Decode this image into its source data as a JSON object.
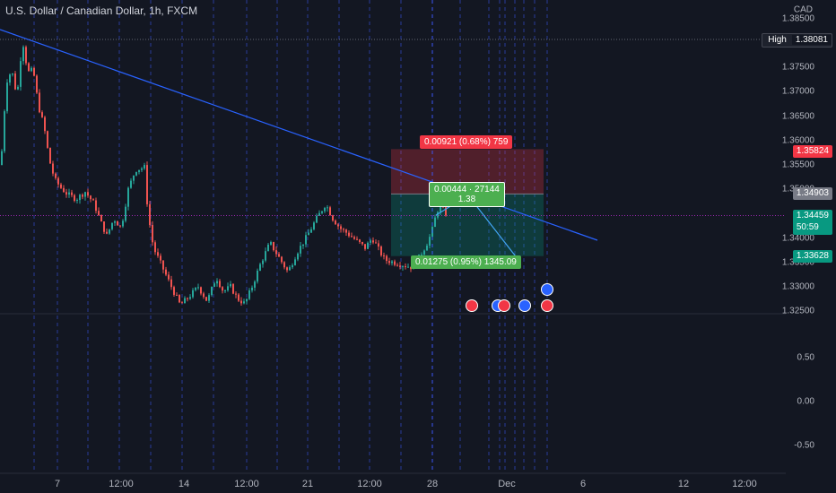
{
  "header": {
    "title": "U.S. Dollar / Canadian Dollar, 1h, FXCM"
  },
  "axis": {
    "currency": "CAD",
    "y_ticks": [
      "1.38500",
      "1.37500",
      "1.37000",
      "1.36500",
      "1.36000",
      "1.35500",
      "1.35000",
      "1.34000",
      "1.33500",
      "1.33000",
      "1.32500",
      "0.50",
      "0.00",
      "-0.50"
    ],
    "x_ticks": [
      "7",
      "12:00",
      "14",
      "12:00",
      "21",
      "12:00",
      "28",
      "Dec",
      "6",
      "12",
      "12:00"
    ]
  },
  "price_tags": {
    "high_label": "High",
    "high_value": "1.38081",
    "stop": "1.35824",
    "entry": "1.34903",
    "current": "1.34459",
    "countdown": "50:59",
    "target": "1.33628"
  },
  "position_tool": {
    "risk_label": "0.00921 (0.68%) 759",
    "reward_label": "0.01275 (0.95%) 1345.09",
    "mid_label_line1": "0.00444 · 27144",
    "mid_label_line2": "1.38"
  },
  "colors": {
    "background": "#131722",
    "up": "#26a69a",
    "down": "#ef5350",
    "trendline": "#2962ff",
    "grid_dash": "#3d5afe"
  },
  "chart_data": {
    "type": "candlestick",
    "symbol": "U.S. Dollar / Canadian Dollar",
    "timeframe": "1h",
    "ylim": [
      1.3225,
      1.3865
    ],
    "key_levels": {
      "high": 1.38081,
      "stop": 1.35824,
      "entry": 1.34903,
      "current": 1.34459,
      "target": 1.33628
    },
    "path_points": [
      [
        0,
        1.355
      ],
      [
        6,
        1.372
      ],
      [
        12,
        1.3745
      ],
      [
        18,
        1.369
      ],
      [
        24,
        1.3808
      ],
      [
        30,
        1.374
      ],
      [
        36,
        1.3745
      ],
      [
        42,
        1.367
      ],
      [
        48,
        1.363
      ],
      [
        54,
        1.356
      ],
      [
        60,
        1.352
      ],
      [
        66,
        1.3505
      ],
      [
        74,
        1.349
      ],
      [
        84,
        1.348
      ],
      [
        94,
        1.3495
      ],
      [
        104,
        1.347
      ],
      [
        112,
        1.343
      ],
      [
        118,
        1.3405
      ],
      [
        126,
        1.344
      ],
      [
        134,
        1.342
      ],
      [
        142,
        1.35
      ],
      [
        150,
        1.354
      ],
      [
        160,
        1.3545
      ],
      [
        164,
        1.345
      ],
      [
        170,
        1.338
      ],
      [
        180,
        1.334
      ],
      [
        190,
        1.33
      ],
      [
        200,
        1.3262
      ],
      [
        210,
        1.328
      ],
      [
        220,
        1.33
      ],
      [
        230,
        1.327
      ],
      [
        240,
        1.332
      ],
      [
        248,
        1.329
      ],
      [
        256,
        1.33
      ],
      [
        264,
        1.3275
      ],
      [
        272,
        1.3265
      ],
      [
        280,
        1.33
      ],
      [
        290,
        1.335
      ],
      [
        300,
        1.339
      ],
      [
        310,
        1.336
      ],
      [
        320,
        1.333
      ],
      [
        330,
        1.337
      ],
      [
        340,
        1.34
      ],
      [
        352,
        1.344
      ],
      [
        362,
        1.347
      ],
      [
        370,
        1.344
      ],
      [
        378,
        1.342
      ],
      [
        386,
        1.341
      ],
      [
        396,
        1.3395
      ],
      [
        406,
        1.338
      ],
      [
        414,
        1.34
      ],
      [
        420,
        1.338
      ],
      [
        428,
        1.3355
      ],
      [
        438,
        1.335
      ],
      [
        448,
        1.3345
      ],
      [
        458,
        1.334
      ],
      [
        466,
        1.336
      ],
      [
        474,
        1.3385
      ],
      [
        480,
        1.341
      ],
      [
        486,
        1.3455
      ],
      [
        490,
        1.3465
      ],
      [
        496,
        1.345
      ]
    ]
  }
}
